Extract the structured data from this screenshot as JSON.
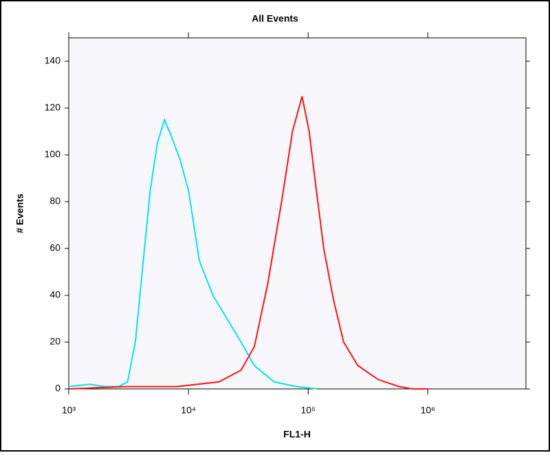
{
  "chart_data": {
    "type": "line",
    "title": "All Events",
    "x_label": "FL1-H",
    "y_label": "# Events",
    "xscale": "log",
    "xlim": [
      1000,
      6600000
    ],
    "ylim": [
      0,
      150
    ],
    "xticks": [
      {
        "value": 1000,
        "label": "10³"
      },
      {
        "value": 10000,
        "label": "10⁴"
      },
      {
        "value": 100000,
        "label": "10⁵"
      },
      {
        "value": 1000000,
        "label": "10⁶"
      }
    ],
    "yticks": [
      0,
      20,
      40,
      60,
      80,
      100,
      120,
      140
    ],
    "series": [
      {
        "name": "cyan",
        "color": "#00e5e5",
        "x": [
          1000,
          1500,
          2000,
          2600,
          3100,
          3600,
          4200,
          4800,
          5500,
          6300,
          7200,
          8500,
          10000,
          12300,
          16000,
          21000,
          27500,
          35500,
          52000,
          80000,
          120000
        ],
        "values": [
          1,
          2,
          1,
          1,
          3,
          20,
          55,
          85,
          105,
          115,
          108,
          98,
          85,
          55,
          40,
          30,
          20,
          10,
          3,
          1,
          0
        ]
      },
      {
        "name": "red",
        "color": "#ff1010",
        "x": [
          1000,
          3000,
          8000,
          18000,
          27500,
          35500,
          46000,
          60000,
          74000,
          89000,
          102000,
          117000,
          135000,
          163000,
          198000,
          260000,
          385000,
          575000,
          745000,
          1000000
        ],
        "values": [
          0,
          1,
          1,
          3,
          8,
          18,
          45,
          80,
          110,
          125,
          110,
          85,
          60,
          38,
          20,
          10,
          4,
          1,
          0,
          0
        ]
      }
    ]
  }
}
